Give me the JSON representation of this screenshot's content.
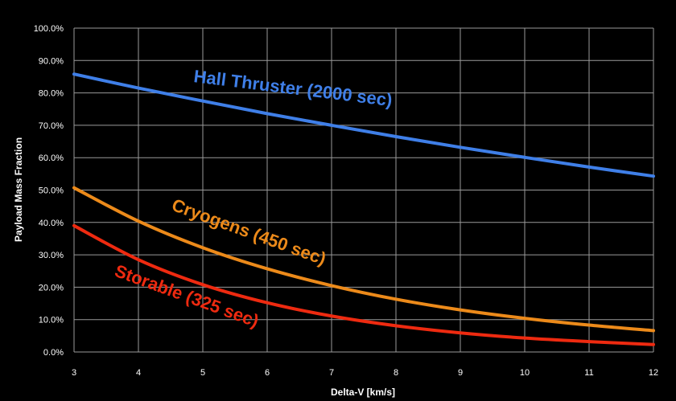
{
  "chart_data": {
    "type": "line",
    "xlabel": "Delta-V [km/s]",
    "ylabel": "Payload Mass Fraction",
    "xlim": [
      3,
      12
    ],
    "ylim": [
      0,
      100
    ],
    "x_ticks": [
      "3",
      "4",
      "5",
      "6",
      "7",
      "8",
      "9",
      "10",
      "11",
      "12"
    ],
    "y_ticks": [
      "0.0%",
      "10.0%",
      "20.0%",
      "30.0%",
      "40.0%",
      "50.0%",
      "60.0%",
      "70.0%",
      "80.0%",
      "90.0%",
      "100.0%"
    ],
    "grid": true,
    "x": [
      3,
      4,
      5,
      6,
      7,
      8,
      9,
      10,
      11,
      12
    ],
    "series": [
      {
        "name": "Hall Thruster (2000 sec)",
        "color": "#3f7fe8",
        "values": [
          85.8,
          81.5,
          77.5,
          73.6,
          70.0,
          66.5,
          63.2,
          60.1,
          57.1,
          54.3
        ]
      },
      {
        "name": "Cryogens (450 sec)",
        "color": "#ec8a1a",
        "values": [
          50.7,
          40.4,
          32.2,
          25.7,
          20.5,
          16.3,
          13.0,
          10.4,
          8.3,
          6.6
        ]
      },
      {
        "name": "Storable (325 sec)",
        "color": "#ee2a10",
        "values": [
          39.0,
          28.5,
          20.8,
          15.2,
          11.1,
          8.1,
          5.9,
          4.3,
          3.2,
          2.3
        ]
      }
    ]
  }
}
